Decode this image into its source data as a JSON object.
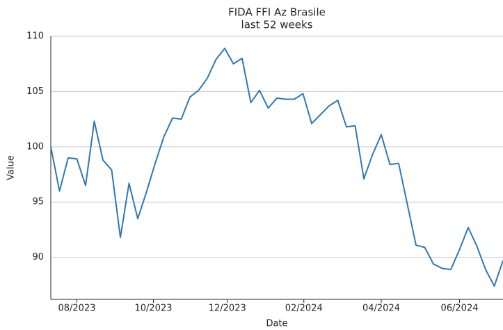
{
  "chart_data": {
    "type": "line",
    "title": "FIDA FFI Az Brasile",
    "subtitle": "last 52 weeks",
    "x_label": "Date",
    "y_label": "Value",
    "series": [
      {
        "name": "FIDA FFI Az Brasile",
        "color": "#2e78b3",
        "values": [
          100.0,
          96.0,
          99.0,
          98.9,
          96.5,
          102.3,
          98.8,
          97.9,
          91.8,
          96.7,
          93.5,
          95.9,
          98.5,
          100.9,
          102.6,
          102.5,
          104.5,
          105.1,
          106.2,
          107.9,
          108.9,
          107.5,
          108.0,
          104.0,
          105.1,
          103.5,
          104.4,
          104.3,
          104.3,
          104.8,
          102.1,
          102.9,
          103.7,
          104.2,
          101.8,
          101.9,
          97.1,
          99.3,
          101.1,
          98.4,
          98.5,
          94.8,
          91.1,
          90.9,
          89.4,
          89.0,
          88.9,
          90.7,
          92.7,
          91.0,
          88.9,
          87.4,
          89.7
        ]
      }
    ],
    "xlim": [
      0,
      52
    ],
    "xticks": [
      {
        "value": 3,
        "label": "08/2023"
      },
      {
        "value": 11.8,
        "label": "10/2023"
      },
      {
        "value": 20.3,
        "label": "12/2023"
      },
      {
        "value": 29.1,
        "label": "02/2024"
      },
      {
        "value": 38,
        "label": "04/2024"
      },
      {
        "value": 47,
        "label": "06/2024"
      }
    ],
    "ylim": [
      86.2,
      110
    ],
    "yticks": [
      90,
      95,
      100,
      105,
      110
    ],
    "grid": true
  }
}
